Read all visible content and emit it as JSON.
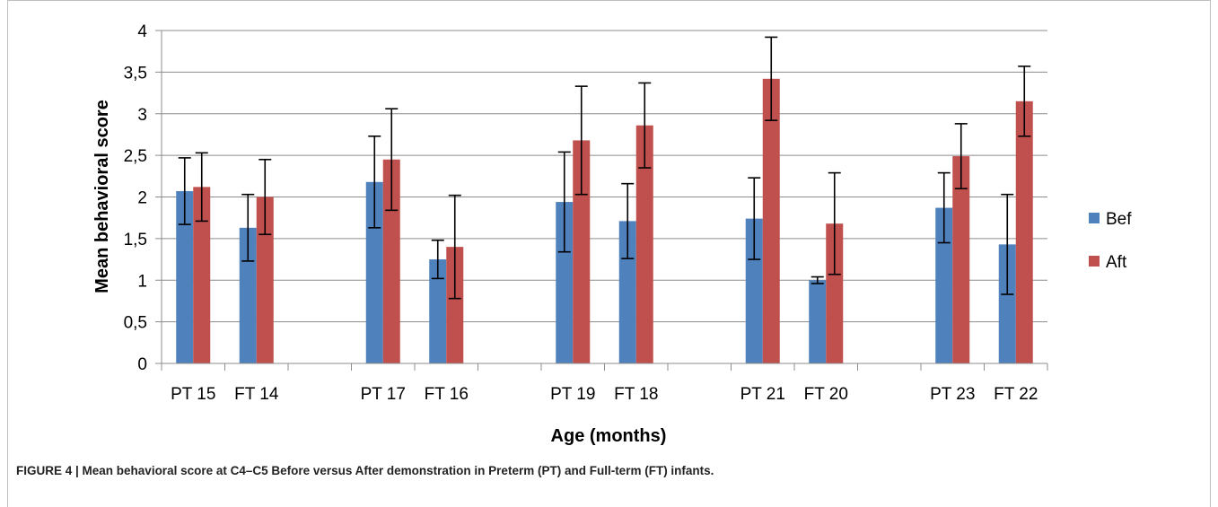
{
  "caption": "FIGURE 4 | Mean behavioral score at C4–C5 Before versus After demonstration in Preterm (PT) and Full-term (FT) infants.",
  "chart_data": {
    "type": "bar",
    "title": "",
    "xlabel": "Age (months)",
    "ylabel": "Mean behavioral score",
    "ylim": [
      0,
      4
    ],
    "yticks": [
      0,
      0.5,
      1,
      1.5,
      2,
      2.5,
      3,
      3.5,
      4
    ],
    "ytick_labels": [
      "0",
      "0,5",
      "1",
      "1,5",
      "2",
      "2,5",
      "3",
      "3,5",
      "4"
    ],
    "categories": [
      "PT 15",
      "FT 14",
      "",
      "PT 17",
      "FT 16",
      "",
      "PT 19",
      "FT 18",
      "",
      "PT 21",
      "FT 20",
      "",
      "PT 23",
      "FT 22"
    ],
    "grid": "horizontal",
    "legend_position": "right",
    "series": [
      {
        "name": "Bef",
        "color": "#4f81bd",
        "values": [
          2.07,
          1.63,
          null,
          2.18,
          1.25,
          null,
          1.94,
          1.71,
          null,
          1.74,
          1.0,
          null,
          1.87,
          1.43
        ],
        "errors": [
          0.4,
          0.4,
          null,
          0.55,
          0.23,
          null,
          0.6,
          0.45,
          null,
          0.49,
          0.04,
          null,
          0.42,
          0.6
        ]
      },
      {
        "name": "Aft",
        "color": "#c0504d",
        "values": [
          2.12,
          2.0,
          null,
          2.45,
          1.4,
          null,
          2.68,
          2.86,
          null,
          3.42,
          1.68,
          null,
          2.49,
          3.15
        ],
        "errors": [
          0.41,
          0.45,
          null,
          0.61,
          0.62,
          null,
          0.65,
          0.51,
          null,
          0.5,
          0.61,
          null,
          0.39,
          0.42
        ]
      }
    ]
  }
}
